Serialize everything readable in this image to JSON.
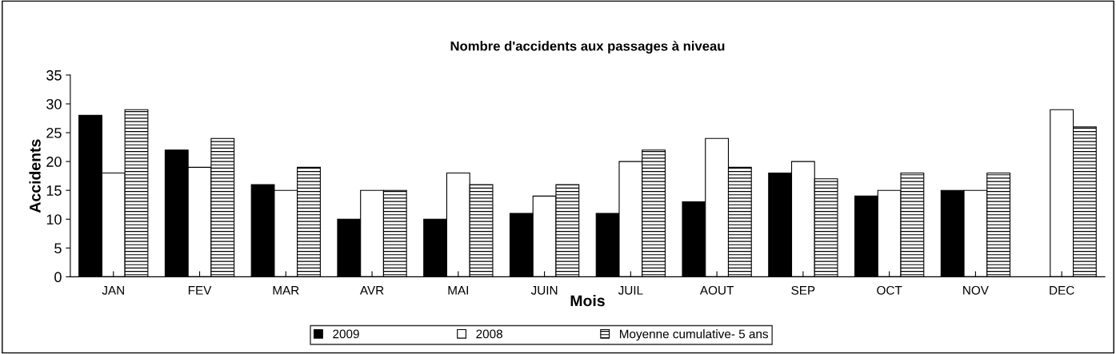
{
  "chart_data": {
    "type": "bar",
    "title": "Nombre d'accidents aux passages à niveau",
    "xlabel": "Mois",
    "ylabel": "Accidents",
    "categories": [
      "JAN",
      "FEV",
      "MAR",
      "AVR",
      "MAI",
      "JUIN",
      "JUIL",
      "AOUT",
      "SEP",
      "OCT",
      "NOV",
      "DEC"
    ],
    "series": [
      {
        "name": "2009",
        "color": "#000000",
        "values": [
          28,
          22,
          16,
          10,
          10,
          11,
          11,
          13,
          18,
          14,
          15,
          null
        ]
      },
      {
        "name": "2008",
        "color": "#ffffff",
        "values": [
          18,
          19,
          15,
          15,
          18,
          14,
          20,
          24,
          20,
          15,
          15,
          29
        ]
      },
      {
        "name": "Moyenne cumulative- 5 ans",
        "color": "#000000",
        "values": [
          29,
          24,
          19,
          15,
          16,
          16,
          22,
          19,
          17,
          18,
          18,
          26
        ]
      }
    ],
    "ylim": [
      0,
      35
    ],
    "yticks": [
      0,
      5,
      10,
      15,
      20,
      25,
      30,
      35
    ],
    "grid": false,
    "legend": "bottom"
  }
}
